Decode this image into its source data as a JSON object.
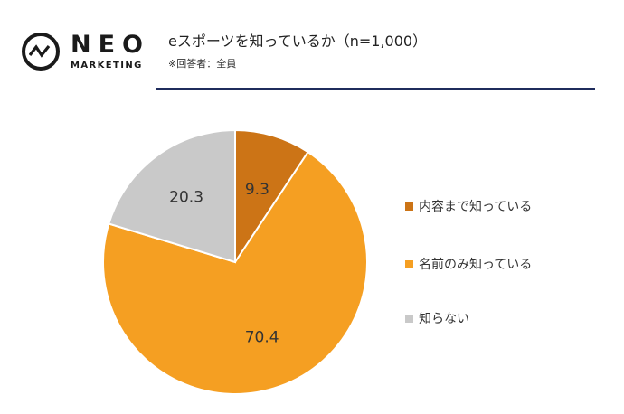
{
  "brand": {
    "name": "NEO",
    "sub": "MARKETING"
  },
  "header": {
    "title": "eスポーツを知っているか（n=1,000）",
    "subtitle": "※回答者：全員"
  },
  "chart_data": {
    "type": "pie",
    "slices": [
      {
        "label": "内容まで知っている",
        "value": 9.3,
        "color": "#cc7416"
      },
      {
        "label": "名前のみ知っている",
        "value": 70.4,
        "color": "#f59f22"
      },
      {
        "label": "知らない",
        "value": 20.3,
        "color": "#c9c9c9"
      }
    ],
    "legend_position": "right",
    "start_angle_deg": 0,
    "direction": "clockwise"
  }
}
